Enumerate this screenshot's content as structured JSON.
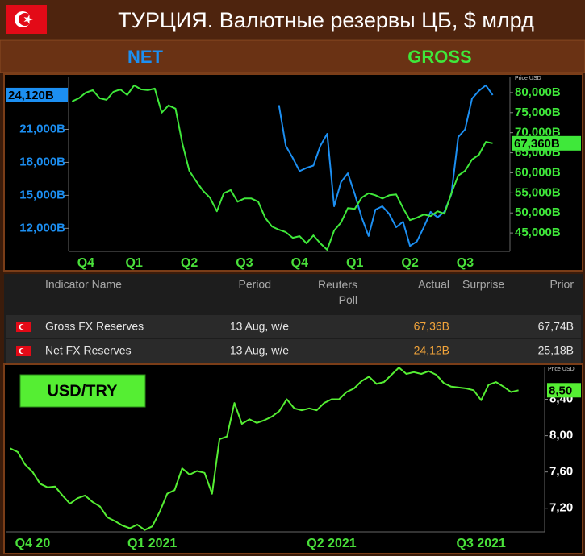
{
  "header": {
    "title": "ТУРЦИЯ. Валютные резервы ЦБ, $ млрд"
  },
  "chart_data": [
    {
      "type": "line",
      "categories": [
        null,
        null,
        "Q4",
        null,
        null,
        null,
        null,
        null,
        null,
        "Q1",
        null,
        null,
        null,
        null,
        null,
        null,
        null,
        "Q2",
        null,
        null,
        null,
        null,
        null,
        null,
        null,
        "Q3",
        null,
        null,
        null,
        null,
        null,
        null,
        null,
        "Q4",
        null,
        null,
        null,
        null,
        null,
        null,
        null,
        "Q1",
        null,
        null,
        null,
        null,
        null,
        null,
        null,
        "Q2",
        null,
        null,
        null,
        null,
        null,
        null,
        null,
        "Q3",
        null,
        null,
        null,
        null,
        null,
        null
      ],
      "series": [
        {
          "name": "NET",
          "color": "#1c8ff2",
          "axis": "y",
          "values": [
            null,
            null,
            null,
            null,
            null,
            null,
            null,
            null,
            null,
            null,
            null,
            null,
            null,
            null,
            null,
            null,
            null,
            null,
            null,
            null,
            null,
            null,
            null,
            null,
            null,
            null,
            null,
            null,
            null,
            null,
            23200,
            19500,
            18400,
            17200,
            17500,
            17700,
            19500,
            20600,
            14000,
            16200,
            17000,
            15100,
            13000,
            11300,
            13700,
            14000,
            13300,
            12100,
            12600,
            10400,
            10800,
            12100,
            13500,
            13000,
            13500,
            15100,
            20300,
            21000,
            23800,
            24500,
            25000,
            24120,
            null,
            null
          ],
          "value_labels": [
            null,
            null,
            null,
            null,
            null,
            null,
            null,
            null,
            null,
            null,
            null,
            null,
            null,
            null,
            null,
            null,
            null,
            null,
            null,
            null,
            null,
            null,
            null,
            null,
            null,
            null,
            null,
            null,
            null,
            null,
            null,
            null,
            null,
            null,
            null,
            null,
            null,
            null,
            null,
            null,
            null,
            null,
            null,
            null,
            null,
            null,
            null,
            null,
            null,
            null,
            null,
            null,
            null,
            null,
            null,
            null,
            null,
            null,
            null,
            null,
            null,
            "24,120B",
            null,
            null
          ]
        },
        {
          "name": "GROSS",
          "color": "#3fe83a",
          "axis": "y2",
          "values": [
            77800,
            78600,
            80000,
            80600,
            78600,
            78200,
            80200,
            80800,
            79400,
            81800,
            80800,
            80600,
            81000,
            75000,
            76800,
            76000,
            67300,
            60500,
            57900,
            55500,
            53800,
            50400,
            54900,
            55700,
            52800,
            53600,
            53600,
            52800,
            48800,
            46600,
            45800,
            45200,
            43800,
            44200,
            42400,
            44400,
            42400,
            40800,
            45600,
            47600,
            51200,
            51000,
            53800,
            54900,
            54400,
            53600,
            54400,
            54600,
            51200,
            48200,
            48800,
            49600,
            49200,
            50400,
            49800,
            54900,
            59300,
            60500,
            63300,
            64500,
            67700,
            67360,
            null,
            null
          ],
          "value_labels": [
            null,
            null,
            null,
            null,
            null,
            null,
            null,
            null,
            null,
            null,
            null,
            null,
            null,
            null,
            null,
            null,
            null,
            null,
            null,
            null,
            null,
            null,
            null,
            null,
            null,
            null,
            null,
            null,
            null,
            null,
            null,
            null,
            null,
            null,
            null,
            null,
            null,
            null,
            null,
            null,
            null,
            null,
            null,
            null,
            null,
            null,
            null,
            null,
            null,
            null,
            null,
            null,
            null,
            null,
            null,
            null,
            null,
            null,
            null,
            null,
            null,
            "67,360B",
            null,
            null
          ]
        }
      ],
      "ylim": [
        9900,
        25800
      ],
      "yticks": [
        {
          "value": 12000,
          "label": "12,000B"
        },
        {
          "value": 15000,
          "label": "15,000B"
        },
        {
          "value": 18000,
          "label": "18,000B"
        },
        {
          "value": 21000,
          "label": "21,000B"
        }
      ],
      "y2lim": [
        40400,
        84000
      ],
      "y2ticks": [
        {
          "value": 45000,
          "label": "45,000B"
        },
        {
          "value": 50000,
          "label": "50,000B"
        },
        {
          "value": 55000,
          "label": "55,000B"
        },
        {
          "value": 60000,
          "label": "60,000B"
        },
        {
          "value": 65000,
          "label": "65,000B"
        },
        {
          "value": 70000,
          "label": "70,000B"
        },
        {
          "value": 75000,
          "label": "75,000B"
        },
        {
          "value": 80000,
          "label": "80,000B"
        }
      ],
      "y2_label": "Price USD",
      "grid": false
    },
    {
      "type": "line",
      "title": "USD/TRY",
      "y_axis_side": "right",
      "y_label": "Price USD",
      "color": "#55ee33",
      "categories": [
        null,
        null,
        null,
        "Q4 20",
        null,
        null,
        null,
        null,
        null,
        null,
        null,
        null,
        null,
        null,
        null,
        null,
        null,
        null,
        null,
        "Q1 2021",
        null,
        null,
        null,
        null,
        null,
        null,
        null,
        null,
        null,
        null,
        null,
        null,
        null,
        null,
        null,
        null,
        null,
        null,
        null,
        null,
        null,
        null,
        null,
        "Q2 2021",
        null,
        null,
        null,
        null,
        null,
        null,
        null,
        null,
        null,
        null,
        null,
        null,
        null,
        null,
        null,
        null,
        null,
        null,
        null,
        "Q3 2021",
        null,
        null,
        null,
        null,
        null,
        null,
        null,
        null
      ],
      "values": [
        7.86,
        7.82,
        7.68,
        7.6,
        7.47,
        7.43,
        7.44,
        7.34,
        7.25,
        7.31,
        7.34,
        7.27,
        7.22,
        7.1,
        7.06,
        7.01,
        6.98,
        7.02,
        6.96,
        7.0,
        7.16,
        7.36,
        7.4,
        7.64,
        7.57,
        7.61,
        7.59,
        7.36,
        7.96,
        7.99,
        8.36,
        8.13,
        8.18,
        8.14,
        8.17,
        8.21,
        8.27,
        8.4,
        8.3,
        8.28,
        8.3,
        8.28,
        8.36,
        8.4,
        8.4,
        8.48,
        8.52,
        8.6,
        8.65,
        8.57,
        8.59,
        8.67,
        8.75,
        8.68,
        8.7,
        8.68,
        8.71,
        8.67,
        8.58,
        8.54,
        8.53,
        8.52,
        8.5,
        8.39,
        8.56,
        8.59,
        8.54,
        8.48,
        8.5,
        null,
        null,
        null
      ],
      "value_labels": [
        null,
        null,
        null,
        null,
        null,
        null,
        null,
        null,
        null,
        null,
        null,
        null,
        null,
        null,
        null,
        null,
        null,
        null,
        null,
        null,
        null,
        null,
        null,
        null,
        null,
        null,
        null,
        null,
        null,
        null,
        null,
        null,
        null,
        null,
        null,
        null,
        null,
        null,
        null,
        null,
        null,
        null,
        null,
        null,
        null,
        null,
        null,
        null,
        null,
        null,
        null,
        null,
        null,
        null,
        null,
        null,
        null,
        null,
        null,
        null,
        null,
        null,
        null,
        null,
        null,
        null,
        null,
        null,
        "8,50",
        null,
        null,
        null
      ],
      "ylim": [
        6.94,
        8.76
      ],
      "yticks": [
        {
          "value": 7.2,
          "label": "7,20"
        },
        {
          "value": 7.6,
          "label": "7,60"
        },
        {
          "value": 8.0,
          "label": "8,00"
        },
        {
          "value": 8.4,
          "label": "8,40"
        }
      ],
      "grid": false
    }
  ],
  "table": {
    "columns": [
      "Indicator Name",
      "Period",
      "Reuters Poll",
      "Actual",
      "Surprise",
      "Prior"
    ],
    "rows": [
      [
        "Gross FX Reserves",
        "13 Aug, w/e",
        null,
        "67,36B",
        null,
        "67,74B"
      ],
      [
        "Net FX Reserves",
        "13 Aug, w/e",
        null,
        "24,12B",
        null,
        "25,18B"
      ]
    ]
  }
}
